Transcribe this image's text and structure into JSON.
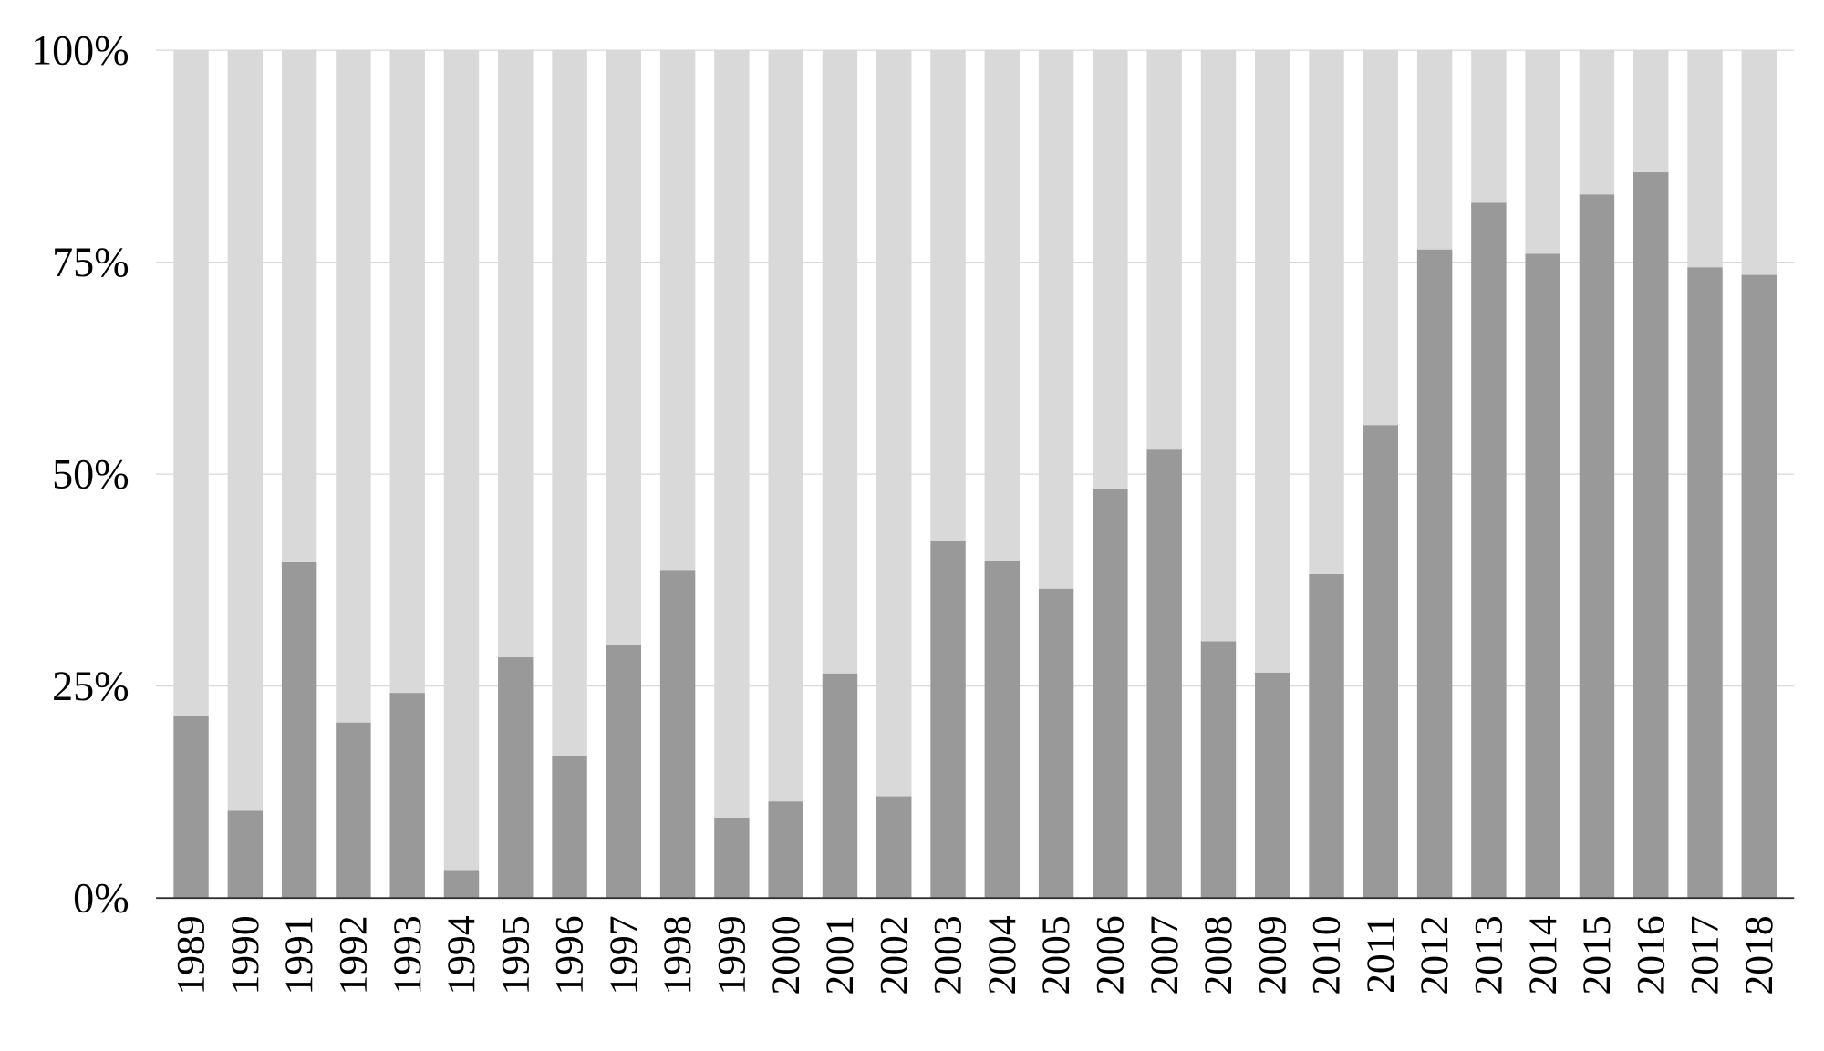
{
  "chart_data": {
    "type": "bar",
    "stacked": true,
    "normalized": true,
    "categories": [
      "1989",
      "1990",
      "1991",
      "1992",
      "1993",
      "1994",
      "1995",
      "1996",
      "1997",
      "1998",
      "1999",
      "2000",
      "2001",
      "2002",
      "2003",
      "2004",
      "2005",
      "2006",
      "2007",
      "2008",
      "2009",
      "2010",
      "2011",
      "2012",
      "2013",
      "2014",
      "2015",
      "2016",
      "2017",
      "2018"
    ],
    "series": [
      {
        "values": [
          21.5,
          10.3,
          39.7,
          20.7,
          24.2,
          3.3,
          28.4,
          16.8,
          29.8,
          38.7,
          9.5,
          11.4,
          26.5,
          12.0,
          42.1,
          39.8,
          36.5,
          48.2,
          52.9,
          30.3,
          26.6,
          38.2,
          55.8,
          76.5,
          82.0,
          76.0,
          83.0,
          85.6,
          74.4,
          73.5
        ],
        "color": "#999999"
      },
      {
        "values": [
          78.5,
          89.7,
          60.3,
          79.3,
          75.8,
          96.7,
          71.6,
          83.2,
          70.2,
          61.3,
          90.5,
          88.6,
          73.5,
          88.0,
          57.9,
          60.2,
          63.5,
          51.8,
          47.1,
          69.7,
          73.4,
          61.8,
          44.2,
          23.5,
          18.0,
          24.0,
          17.0,
          14.4,
          25.6,
          26.5
        ],
        "color": "#d9d9d9"
      }
    ],
    "yticks": [
      "0%",
      "25%",
      "50%",
      "75%",
      "100%"
    ],
    "ylim": [
      0,
      100
    ],
    "grid": true,
    "legend": "none",
    "title": "",
    "xlabel": "",
    "ylabel": ""
  }
}
